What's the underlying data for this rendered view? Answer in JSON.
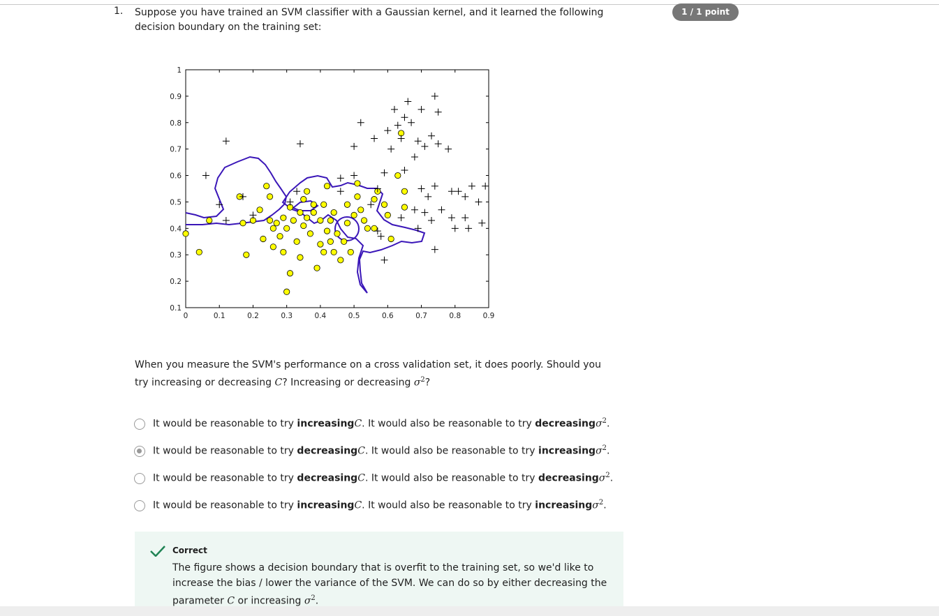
{
  "score": "1 / 1 point",
  "question": {
    "number": "1.",
    "text": "Suppose you have trained an SVM classifier with a Gaussian kernel, and it learned the following decision boundary on the training set:",
    "followup": [
      "When you measure the SVM's performance on a cross validation set, it does poorly. Should you try increasing or decreasing ",
      "C",
      "? Increasing or decreasing ",
      "σ",
      "2",
      "?"
    ]
  },
  "chart_data": {
    "type": "scatter",
    "xlim": [
      0,
      0.9
    ],
    "ylim": [
      0.1,
      1
    ],
    "xticks": [
      0,
      0.1,
      0.2,
      0.3,
      0.4,
      0.5,
      0.6,
      0.7,
      0.8,
      0.9
    ],
    "yticks": [
      0.1,
      0.2,
      0.3,
      0.4,
      0.5,
      0.6,
      0.7,
      0.8,
      0.9,
      1
    ],
    "boundary_color": "#3a16b8",
    "series": [
      {
        "marker": "circle",
        "color": "#ffff00",
        "x": [
          0.0,
          0.04,
          0.07,
          0.17,
          0.18,
          0.2,
          0.22,
          0.23,
          0.24,
          0.25,
          0.25,
          0.26,
          0.26,
          0.27,
          0.28,
          0.29,
          0.29,
          0.3,
          0.3,
          0.31,
          0.31,
          0.32,
          0.33,
          0.34,
          0.34,
          0.35,
          0.35,
          0.36,
          0.36,
          0.37,
          0.38,
          0.38,
          0.39,
          0.4,
          0.4,
          0.41,
          0.41,
          0.42,
          0.42,
          0.43,
          0.43,
          0.44,
          0.44,
          0.45,
          0.46,
          0.47,
          0.48,
          0.48,
          0.49,
          0.5,
          0.51,
          0.52,
          0.53,
          0.54,
          0.56,
          0.56,
          0.57,
          0.59,
          0.6,
          0.61,
          0.63,
          0.65,
          0.65,
          0.51,
          0.16,
          0.64
        ],
        "values": [
          0.38,
          0.31,
          0.43,
          0.42,
          0.3,
          0.43,
          0.47,
          0.36,
          0.56,
          0.43,
          0.52,
          0.4,
          0.33,
          0.42,
          0.37,
          0.31,
          0.44,
          0.4,
          0.16,
          0.48,
          0.23,
          0.43,
          0.35,
          0.29,
          0.46,
          0.41,
          0.51,
          0.44,
          0.54,
          0.38,
          0.46,
          0.49,
          0.25,
          0.43,
          0.34,
          0.49,
          0.31,
          0.39,
          0.56,
          0.35,
          0.43,
          0.31,
          0.46,
          0.38,
          0.28,
          0.35,
          0.42,
          0.49,
          0.31,
          0.45,
          0.52,
          0.47,
          0.43,
          0.4,
          0.4,
          0.51,
          0.54,
          0.49,
          0.45,
          0.36,
          0.6,
          0.54,
          0.48,
          0.57,
          0.52,
          0.76
        ]
      },
      {
        "marker": "plus",
        "color": "#000000",
        "x": [
          0.06,
          0.12,
          0.1,
          0.12,
          0.17,
          0.2,
          0.34,
          0.33,
          0.31,
          0.46,
          0.46,
          0.5,
          0.5,
          0.52,
          0.55,
          0.56,
          0.57,
          0.59,
          0.59,
          0.58,
          0.6,
          0.61,
          0.62,
          0.63,
          0.64,
          0.65,
          0.65,
          0.66,
          0.67,
          0.68,
          0.68,
          0.69,
          0.7,
          0.7,
          0.71,
          0.71,
          0.72,
          0.73,
          0.73,
          0.74,
          0.74,
          0.75,
          0.75,
          0.76,
          0.74,
          0.78,
          0.79,
          0.79,
          0.8,
          0.81,
          0.83,
          0.83,
          0.84,
          0.85,
          0.87,
          0.88,
          0.89,
          0.57,
          0.69,
          0.64
        ],
        "values": [
          0.6,
          0.73,
          0.49,
          0.43,
          0.52,
          0.45,
          0.72,
          0.54,
          0.5,
          0.54,
          0.59,
          0.6,
          0.71,
          0.8,
          0.49,
          0.74,
          0.55,
          0.61,
          0.28,
          0.37,
          0.77,
          0.7,
          0.85,
          0.79,
          0.74,
          0.62,
          0.82,
          0.88,
          0.8,
          0.67,
          0.47,
          0.73,
          0.55,
          0.85,
          0.71,
          0.46,
          0.52,
          0.75,
          0.43,
          0.9,
          0.56,
          0.72,
          0.84,
          0.47,
          0.32,
          0.7,
          0.54,
          0.44,
          0.4,
          0.54,
          0.52,
          0.44,
          0.4,
          0.56,
          0.5,
          0.42,
          0.56,
          0.39,
          0.4,
          0.44
        ]
      }
    ]
  },
  "options": [
    {
      "selected": false,
      "segments": [
        "It would be reasonable to try ",
        "increasing",
        "C",
        ". It would also be reasonable to try ",
        "decreasing",
        "σ",
        "2",
        "."
      ]
    },
    {
      "selected": true,
      "segments": [
        "It would be reasonable to try ",
        "decreasing",
        "C",
        ". It would also be reasonable to try ",
        "increasing",
        "σ",
        "2",
        "."
      ]
    },
    {
      "selected": false,
      "segments": [
        "It would be reasonable to try ",
        "decreasing",
        "C",
        ". It would also be reasonable to try ",
        "decreasing",
        "σ",
        "2",
        "."
      ]
    },
    {
      "selected": false,
      "segments": [
        "It would be reasonable to try ",
        "increasing",
        "C",
        ". It would also be reasonable to try ",
        "increasing",
        "σ",
        "2",
        "."
      ]
    }
  ],
  "feedback": {
    "status": "Correct",
    "text": [
      "The figure shows a decision boundary that is overfit to the training set, so we'd like to increase the bias / lower the variance of the SVM. We can do so by either decreasing the parameter ",
      "C",
      " or increasing ",
      "σ",
      "2",
      "."
    ]
  }
}
